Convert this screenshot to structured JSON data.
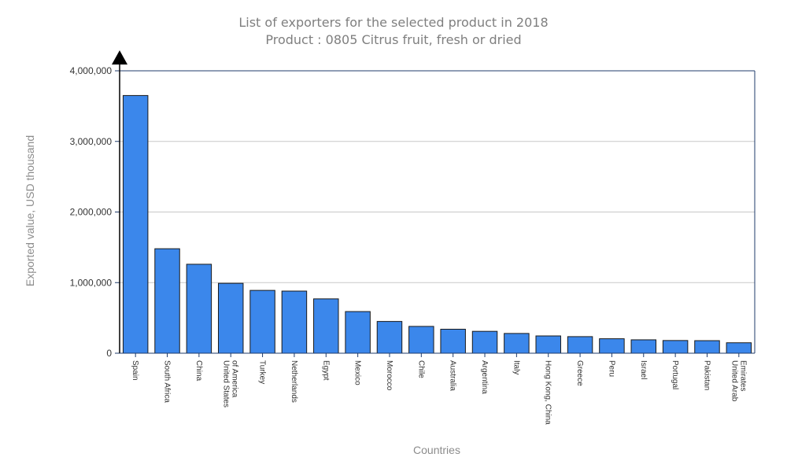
{
  "chart_data": {
    "type": "bar",
    "title": "List of exporters for the selected product in 2018",
    "subtitle": "Product : 0805 Citrus fruit, fresh or dried",
    "xlabel": "Countries",
    "ylabel": "Exported value, USD thousand",
    "ylim": [
      0,
      4000000
    ],
    "yticks": [
      "0",
      "1,000,000",
      "2,000,000",
      "3,000,000",
      "4,000,000"
    ],
    "ytick_values": [
      0,
      1000000,
      2000000,
      3000000,
      4000000
    ],
    "grid": true,
    "legend": "none",
    "categories": [
      [
        "Spain"
      ],
      [
        "South Africa"
      ],
      [
        "China"
      ],
      [
        "United States",
        "of America"
      ],
      [
        "Turkey"
      ],
      [
        "Netherlands"
      ],
      [
        "Egypt"
      ],
      [
        "Mexico"
      ],
      [
        "Morocco"
      ],
      [
        "Chile"
      ],
      [
        "Australia"
      ],
      [
        "Argentina"
      ],
      [
        "Italy"
      ],
      [
        "Hong Kong, China"
      ],
      [
        "Greece"
      ],
      [
        "Peru"
      ],
      [
        "Israel"
      ],
      [
        "Portugal"
      ],
      [
        "Pakistan"
      ],
      [
        "United Arab",
        "Emirates"
      ]
    ],
    "values": [
      3650000,
      1480000,
      1260000,
      990000,
      890000,
      880000,
      770000,
      590000,
      450000,
      380000,
      340000,
      310000,
      280000,
      245000,
      235000,
      205000,
      190000,
      180000,
      178000,
      148000
    ],
    "colors": {
      "bar": "#3b87eb",
      "bar_edge": "#1a1a1a",
      "axis": "#1f3b6b",
      "grid": "#c8c8c8",
      "text": "#333333",
      "muted": "#7f7f7f"
    }
  }
}
